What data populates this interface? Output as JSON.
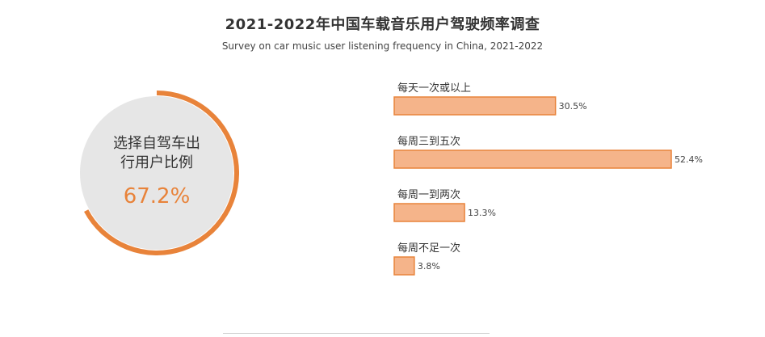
{
  "header": {
    "title": "2021-2022年中国车载音乐用户驾驶频率调查",
    "subtitle": "Survey on car music user listening frequency in China, 2021-2022"
  },
  "donut": {
    "label_line1": "选择自驾车出",
    "label_line2": "行用户比例",
    "value_label": "67.2%",
    "value": 67.2
  },
  "colors": {
    "accent": "#e8833a",
    "bar_fill": "#f5b48a",
    "donut_track": "#e6e6e6"
  },
  "chart_data": [
    {
      "type": "pie",
      "categories": [
        "选择自驾车出行用户比例"
      ],
      "values": [
        67.2
      ]
    },
    {
      "type": "bar",
      "orientation": "horizontal",
      "categories": [
        "每天一次或以上",
        "每周三到五次",
        "每周一到两次",
        "每周不足一次"
      ],
      "values": [
        30.5,
        52.4,
        13.3,
        3.8
      ],
      "value_labels": [
        "30.5%",
        "52.4%",
        "13.3%",
        "3.8%"
      ],
      "xlim": [
        0,
        52.4
      ]
    }
  ]
}
